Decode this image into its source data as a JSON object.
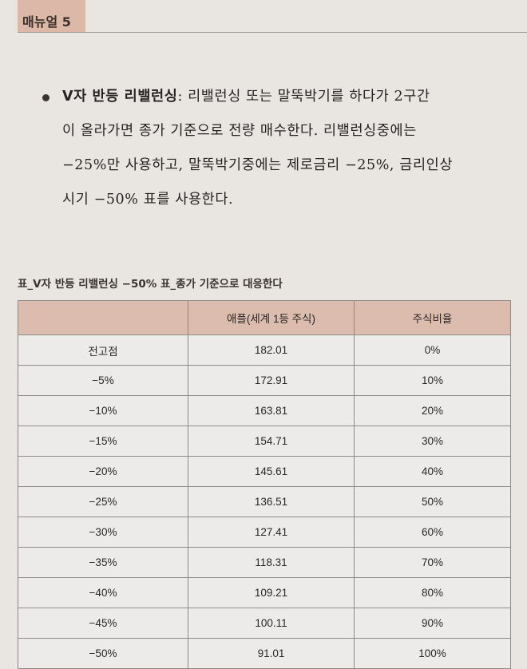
{
  "header": {
    "label": "매뉴얼 5"
  },
  "body": {
    "term": "V자 반등 리밸런싱",
    "line1_rest": ": 리밸런싱 또는 말뚝박기를 하다가 2구간",
    "line2": "이 올라가면 종가 기준으로 전량 매수한다. 리밸런싱중에는",
    "line3": "−25%만 사용하고, 말뚝박기중에는 제로금리 −25%, 금리인상",
    "line4": "시기 −50% 표를 사용한다."
  },
  "table": {
    "caption": "표_V자 반등 리밸런싱 −50% 표_종가 기준으로 대응한다",
    "headers": [
      "",
      "애플(세계 1등 주식)",
      "주식비율"
    ],
    "rows": [
      [
        "전고점",
        "182.01",
        "0%"
      ],
      [
        "−5%",
        "172.91",
        "10%"
      ],
      [
        "−10%",
        "163.81",
        "20%"
      ],
      [
        "−15%",
        "154.71",
        "30%"
      ],
      [
        "−20%",
        "145.61",
        "40%"
      ],
      [
        "−25%",
        "136.51",
        "50%"
      ],
      [
        "−30%",
        "127.41",
        "60%"
      ],
      [
        "−35%",
        "118.31",
        "70%"
      ],
      [
        "−40%",
        "109.21",
        "80%"
      ],
      [
        "−45%",
        "100.11",
        "90%"
      ],
      [
        "−50%",
        "91.01",
        "100%"
      ]
    ]
  }
}
